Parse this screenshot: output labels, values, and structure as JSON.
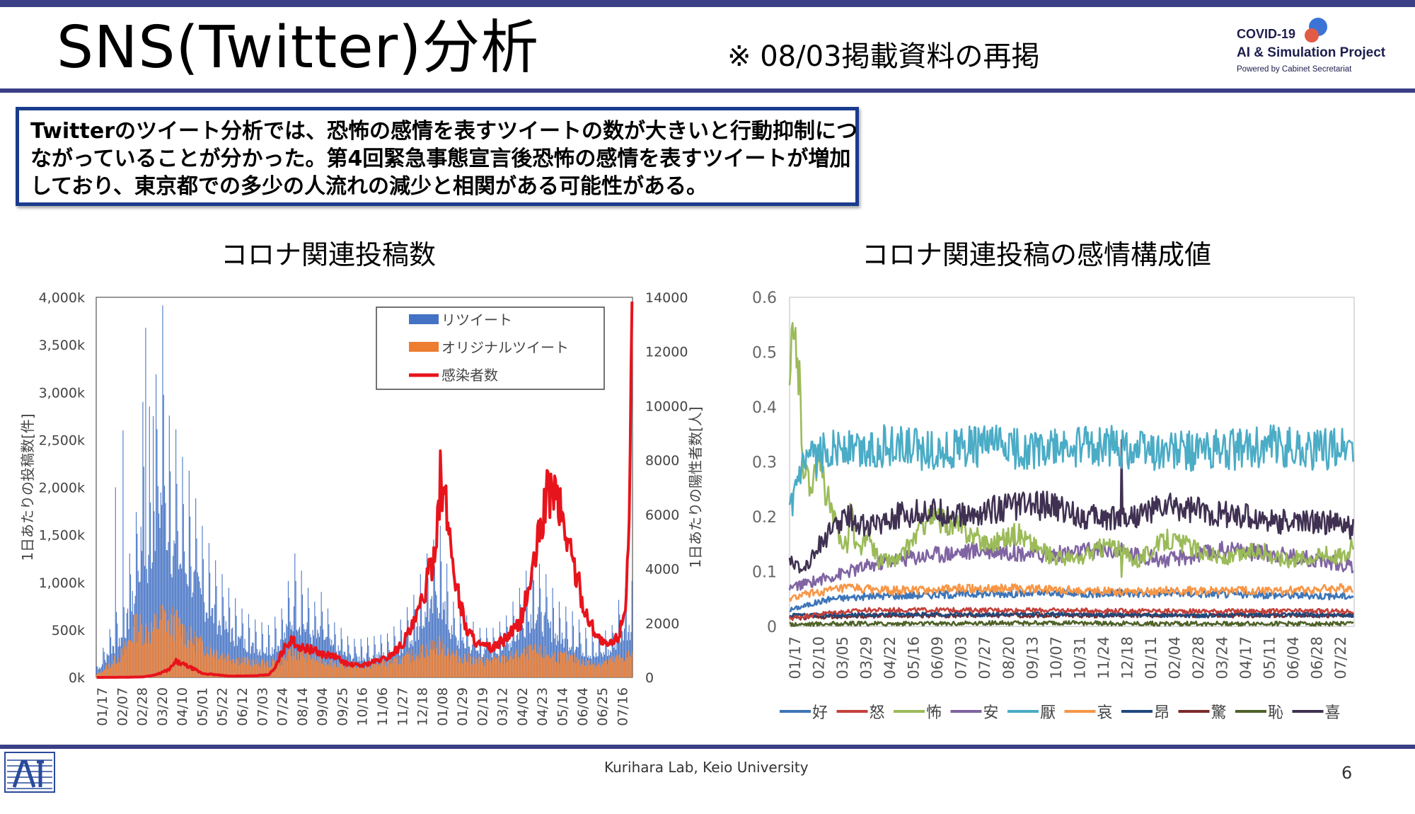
{
  "header": {
    "title": "SNS(Twitter)分析",
    "subtitle": "※ 08/03掲載資料の再掲",
    "logo": {
      "line1": "COVID-19",
      "line2": "AI & Simulation Project",
      "line3": "Powered by Cabinet Secretariat"
    }
  },
  "summary": {
    "text": "Twitterのツイート分析では、恐怖の感情を表すツイートの数が大きいと行動抑制につながっていることが分かった。第4回緊急事態宣言後恐怖の感情を表すツイートが増加しており、東京都での多少の人流れの減少と相関がある可能性がある。"
  },
  "footer": {
    "lab": "Kurihara Lab, Keio University",
    "page": "6"
  },
  "colors": {
    "accent": "#3b3f86",
    "summary_border": "#1a3c8c",
    "retweet": "#4472c4",
    "original": "#ed7d31",
    "infected": "#e8141c"
  },
  "chart_data": [
    {
      "type": "bar",
      "title": "コロナ関連投稿数",
      "ylabel": "1日あたりの投稿数[件]",
      "y2label": "1日あたりの陽性者数[人]",
      "ylim": [
        0,
        4000
      ],
      "y2lim": [
        0,
        14000
      ],
      "yticks": [
        "0k",
        "500k",
        "1,000k",
        "1,500k",
        "2,000k",
        "2,500k",
        "3,000k",
        "3,500k",
        "4,000k"
      ],
      "y2ticks": [
        "0",
        "2000",
        "4000",
        "6000",
        "8000",
        "10000",
        "12000",
        "14000"
      ],
      "x_labels": [
        "01/17",
        "02/07",
        "02/28",
        "03/20",
        "04/10",
        "05/01",
        "05/22",
        "06/12",
        "07/03",
        "07/24",
        "08/14",
        "09/04",
        "09/25",
        "10/16",
        "11/06",
        "11/27",
        "12/18",
        "01/08",
        "01/29",
        "02/19",
        "03/12",
        "04/02",
        "04/23",
        "05/14",
        "06/04",
        "06/25",
        "07/16"
      ],
      "legend_position": "top-right",
      "series": [
        {
          "name": "リツイート",
          "kind": "bar",
          "axis": "left",
          "unit": "k",
          "anchors_x": [
            0,
            14,
            28,
            42,
            49,
            56,
            63,
            70,
            77,
            84,
            91,
            98,
            105,
            112,
            126,
            140,
            154,
            168,
            182,
            196,
            210,
            224,
            231,
            238,
            245,
            252,
            259,
            266,
            273,
            280,
            294,
            308,
            322,
            336,
            350,
            364,
            378,
            392,
            406,
            420,
            434,
            448,
            462,
            476,
            490,
            504,
            518,
            532,
            546,
            552,
            560,
            567
          ],
          "anchors_y": [
            80,
            350,
            600,
            1200,
            2000,
            1500,
            2200,
            2700,
            1900,
            1800,
            1600,
            1500,
            1300,
            1100,
            850,
            650,
            500,
            420,
            380,
            500,
            900,
            650,
            550,
            620,
            500,
            400,
            360,
            300,
            280,
            280,
            300,
            320,
            420,
            600,
            900,
            1100,
            550,
            450,
            360,
            360,
            450,
            650,
            900,
            750,
            550,
            480,
            360,
            300,
            380,
            550,
            650,
            700
          ]
        },
        {
          "name": "オリジナルツイート",
          "kind": "bar",
          "axis": "left",
          "unit": "k",
          "anchors_x": [
            0,
            14,
            28,
            42,
            56,
            70,
            84,
            98,
            112,
            126,
            140,
            154,
            168,
            182,
            196,
            210,
            224,
            238,
            252,
            266,
            280,
            294,
            308,
            322,
            336,
            350,
            364,
            378,
            392,
            406,
            420,
            434,
            448,
            462,
            476,
            490,
            504,
            518,
            532,
            546,
            560,
            567
          ],
          "anchors_y": [
            30,
            150,
            280,
            600,
            520,
            700,
            620,
            460,
            380,
            300,
            240,
            200,
            170,
            160,
            200,
            300,
            260,
            200,
            170,
            150,
            140,
            150,
            170,
            200,
            260,
            330,
            380,
            260,
            220,
            190,
            190,
            220,
            260,
            300,
            280,
            240,
            220,
            170,
            160,
            190,
            250,
            270
          ]
        },
        {
          "name": "感染者数",
          "kind": "line",
          "axis": "right",
          "unit": "人",
          "anchors_x": [
            0,
            28,
            49,
            63,
            77,
            84,
            98,
            112,
            140,
            168,
            182,
            189,
            196,
            203,
            210,
            217,
            224,
            238,
            252,
            266,
            280,
            294,
            308,
            322,
            336,
            343,
            350,
            357,
            364,
            371,
            378,
            385,
            392,
            406,
            420,
            434,
            448,
            462,
            469,
            476,
            483,
            490,
            504,
            518,
            532,
            539,
            546,
            553,
            560,
            564,
            567
          ],
          "anchors_y": [
            0,
            5,
            20,
            100,
            300,
            600,
            400,
            150,
            50,
            60,
            100,
            350,
            950,
            1350,
            1350,
            1100,
            1100,
            900,
            800,
            500,
            450,
            600,
            750,
            1200,
            2000,
            2700,
            3600,
            4600,
            7500,
            6200,
            4200,
            2800,
            1800,
            1200,
            1100,
            1500,
            2000,
            4000,
            5500,
            6800,
            7300,
            6500,
            4500,
            2400,
            1500,
            1200,
            1300,
            1600,
            2800,
            6000,
            12500
          ]
        }
      ]
    },
    {
      "type": "line",
      "title": "コロナ関連投稿の感情構成値",
      "ylim": [
        0,
        0.6
      ],
      "yticks": [
        "0",
        "0.1",
        "0.2",
        "0.3",
        "0.4",
        "0.5",
        "0.6"
      ],
      "x_labels": [
        "01/17",
        "02/10",
        "03/05",
        "03/29",
        "04/22",
        "05/16",
        "06/09",
        "07/03",
        "07/27",
        "08/20",
        "09/13",
        "10/07",
        "10/31",
        "11/24",
        "12/18",
        "01/11",
        "02/04",
        "02/28",
        "03/24",
        "04/17",
        "05/11",
        "06/04",
        "06/28",
        "07/22"
      ],
      "legend_position": "bottom",
      "series": [
        {
          "name": "好",
          "color": "#3d75b8",
          "anchors_x": [
            0,
            40,
            80,
            200,
            400,
            567
          ],
          "anchors_y": [
            0.03,
            0.05,
            0.055,
            0.06,
            0.06,
            0.055
          ]
        },
        {
          "name": "怒",
          "color": "#c4413b",
          "anchors_x": [
            0,
            40,
            80,
            200,
            400,
            567
          ],
          "anchors_y": [
            0.015,
            0.025,
            0.03,
            0.03,
            0.028,
            0.028
          ]
        },
        {
          "name": "怖",
          "color": "#9bbb59",
          "anchors_x": [
            0,
            3,
            8,
            14,
            20,
            26,
            32,
            40,
            50,
            60,
            70,
            80,
            90,
            110,
            140,
            170,
            200,
            230,
            260,
            290,
            320,
            350,
            380,
            410,
            440,
            470,
            500,
            530,
            560,
            567
          ],
          "anchors_y": [
            0.43,
            0.52,
            0.5,
            0.3,
            0.25,
            0.3,
            0.28,
            0.22,
            0.16,
            0.15,
            0.14,
            0.16,
            0.12,
            0.12,
            0.2,
            0.18,
            0.15,
            0.17,
            0.13,
            0.12,
            0.15,
            0.12,
            0.16,
            0.14,
            0.12,
            0.14,
            0.12,
            0.13,
            0.13,
            0.15
          ]
        },
        {
          "name": "安",
          "color": "#8064a2",
          "anchors_x": [
            0,
            20,
            40,
            60,
            80,
            100,
            140,
            200,
            260,
            320,
            380,
            440,
            500,
            567
          ],
          "anchors_y": [
            0.07,
            0.08,
            0.09,
            0.1,
            0.11,
            0.12,
            0.13,
            0.14,
            0.13,
            0.14,
            0.12,
            0.14,
            0.13,
            0.11
          ]
        },
        {
          "name": "厭",
          "color": "#4bacc6",
          "anchors_x": [
            0,
            6,
            12,
            20,
            30,
            45,
            70,
            100,
            150,
            200,
            260,
            320,
            380,
            440,
            500,
            530,
            567
          ],
          "anchors_y": [
            0.2,
            0.25,
            0.28,
            0.3,
            0.31,
            0.33,
            0.32,
            0.33,
            0.32,
            0.33,
            0.32,
            0.33,
            0.32,
            0.32,
            0.33,
            0.32,
            0.33
          ]
        },
        {
          "name": "哀",
          "color": "#f79646",
          "anchors_x": [
            0,
            20,
            40,
            60,
            100,
            200,
            300,
            400,
            500,
            567
          ],
          "anchors_y": [
            0.05,
            0.06,
            0.065,
            0.07,
            0.065,
            0.07,
            0.065,
            0.065,
            0.065,
            0.07
          ]
        },
        {
          "name": "昂",
          "color": "#1f497d",
          "anchors_x": [
            0,
            40,
            100,
            200,
            300,
            400,
            500,
            567
          ],
          "anchors_y": [
            0.02,
            0.02,
            0.022,
            0.022,
            0.022,
            0.02,
            0.022,
            0.02
          ]
        },
        {
          "name": "驚",
          "color": "#7b2a2a",
          "anchors_x": [
            0,
            40,
            100,
            200,
            300,
            400,
            500,
            567
          ],
          "anchors_y": [
            0.015,
            0.018,
            0.02,
            0.02,
            0.02,
            0.02,
            0.02,
            0.02
          ]
        },
        {
          "name": "恥",
          "color": "#4f6228",
          "anchors_x": [
            0,
            40,
            100,
            200,
            300,
            400,
            500,
            567
          ],
          "anchors_y": [
            0.004,
            0.005,
            0.005,
            0.006,
            0.006,
            0.005,
            0.005,
            0.005
          ]
        },
        {
          "name": "喜",
          "color": "#403152",
          "anchors_x": [
            0,
            10,
            20,
            30,
            40,
            50,
            60,
            80,
            100,
            140,
            180,
            220,
            260,
            300,
            340,
            380,
            420,
            460,
            500,
            540,
            567
          ],
          "anchors_y": [
            0.13,
            0.1,
            0.12,
            0.15,
            0.17,
            0.19,
            0.2,
            0.18,
            0.2,
            0.21,
            0.2,
            0.22,
            0.22,
            0.2,
            0.2,
            0.22,
            0.21,
            0.2,
            0.19,
            0.19,
            0.18
          ]
        }
      ]
    }
  ]
}
